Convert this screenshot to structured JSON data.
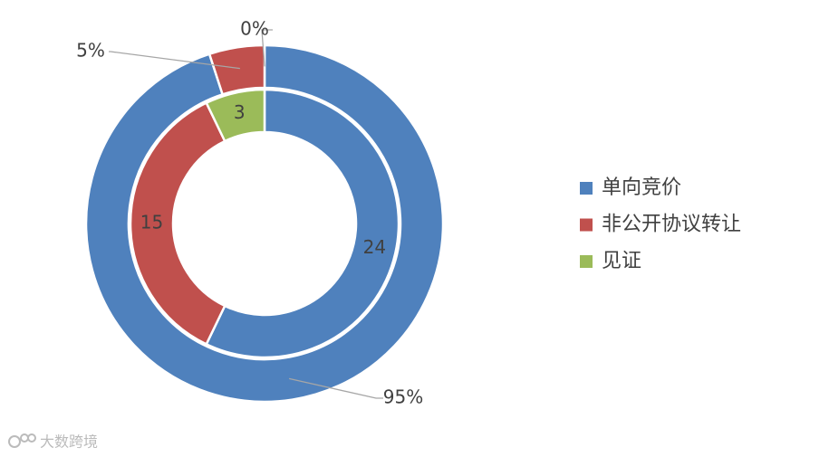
{
  "chart_data": {
    "type": "donut",
    "categories": [
      "单向竞价",
      "非公开协议转让",
      "见证"
    ],
    "colors": [
      "#4f81bd",
      "#c0504d",
      "#9bbb59"
    ],
    "rings": [
      {
        "values": [
          95,
          5,
          0
        ],
        "value_labels": [
          "95%",
          "5%",
          "0%"
        ]
      },
      {
        "values": [
          24,
          15,
          3
        ]
      }
    ],
    "legend": "right"
  },
  "watermark": "大数跨境"
}
